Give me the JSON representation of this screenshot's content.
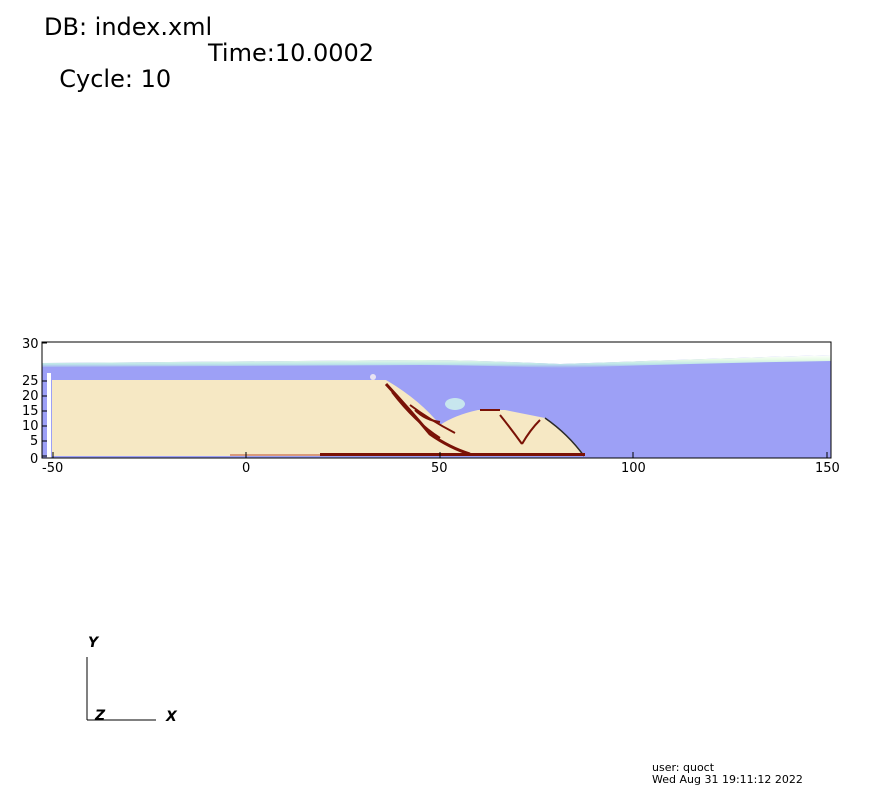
{
  "header": {
    "db_label": "DB: index.xml",
    "cycle_label": "Cycle: 10",
    "time_label": "Time:10.0002"
  },
  "plot": {
    "x_ticks": [
      "-50",
      "0",
      "50",
      "100",
      "150"
    ],
    "y_ticks": [
      "0",
      "5",
      "10",
      "15",
      "20",
      "25",
      "30"
    ],
    "colors": {
      "water": "#9da0f6",
      "air": "#ffffff",
      "debris": "#f6e8c4",
      "shear_band": "#7a1206",
      "interface": "#c9f0d6"
    }
  },
  "triad": {
    "y_label": "Y",
    "x_label": "X",
    "z_label": "Z"
  },
  "footer": {
    "user": "user: quoct",
    "timestamp": "Wed Aug 31 19:11:12 2022"
  }
}
